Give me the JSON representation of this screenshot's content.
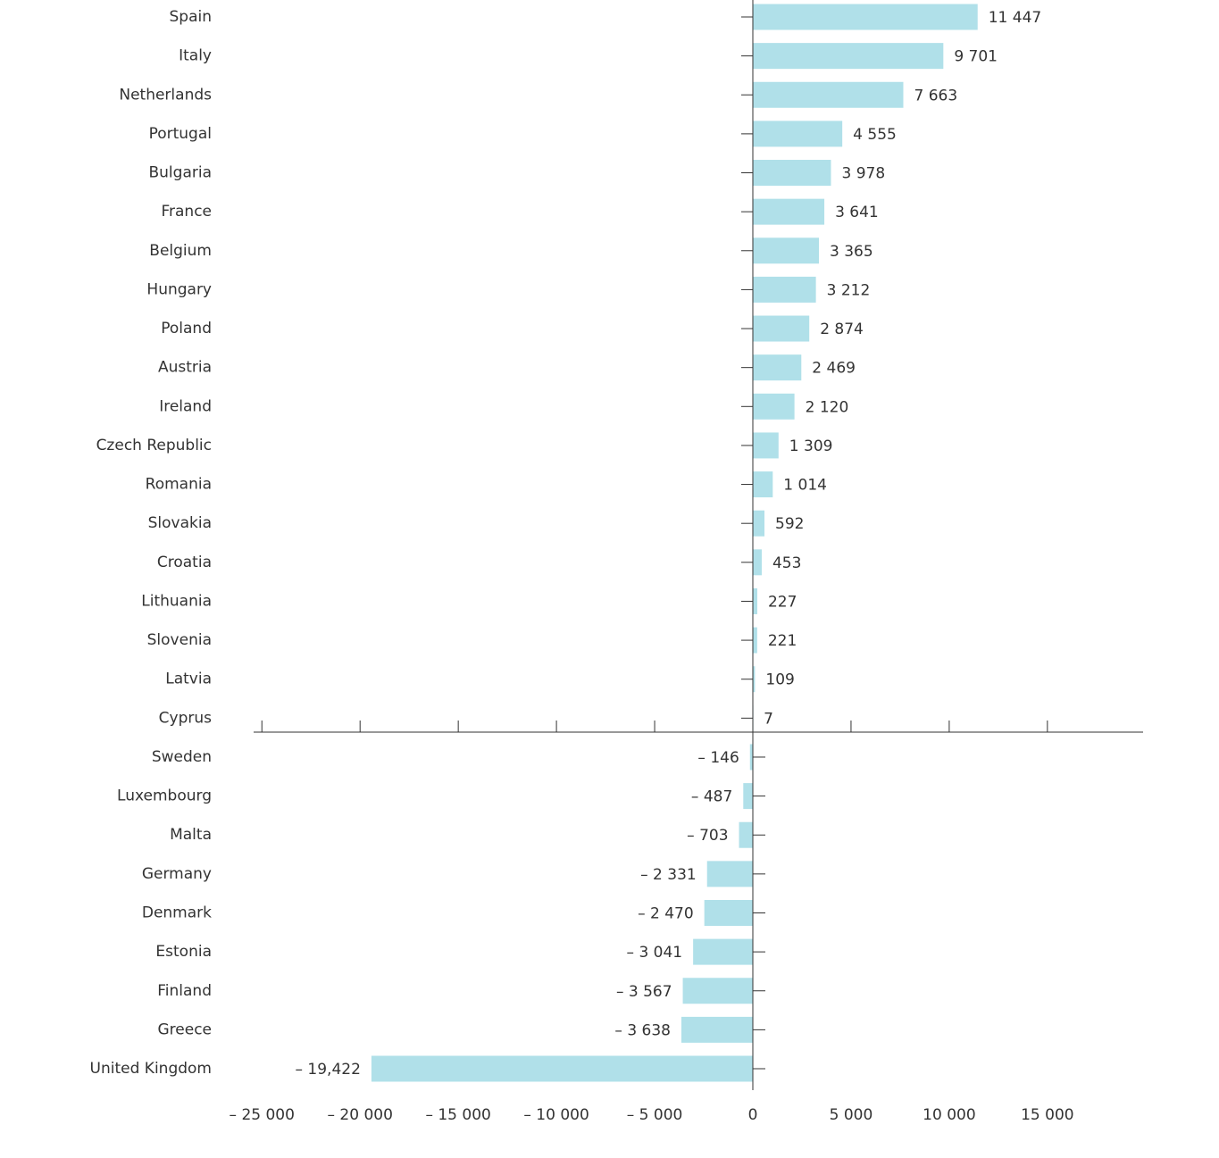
{
  "chart_data": {
    "type": "bar",
    "orientation": "horizontal",
    "categories": [
      "Spain",
      "Italy",
      "Netherlands",
      "Portugal",
      "Bulgaria",
      "France",
      "Belgium",
      "Hungary",
      "Poland",
      "Austria",
      "Ireland",
      "Czech Republic",
      "Romania",
      "Slovakia",
      "Croatia",
      "Lithuania",
      "Slovenia",
      "Latvia",
      "Cyprus",
      "Sweden",
      "Luxembourg",
      "Malta",
      "Germany",
      "Denmark",
      "Estonia",
      "Finland",
      "Greece",
      "United Kingdom"
    ],
    "values": [
      11447,
      9701,
      7663,
      4555,
      3978,
      3641,
      3365,
      3212,
      2874,
      2469,
      2120,
      1309,
      1014,
      592,
      453,
      227,
      221,
      109,
      7,
      -146,
      -487,
      -703,
      -2331,
      -2470,
      -3041,
      -3567,
      -3638,
      -19422
    ],
    "value_labels": [
      "11 447",
      "9 701",
      "7 663",
      "4 555",
      "3 978",
      "3 641",
      "3 365",
      "3 212",
      "2 874",
      "2 469",
      "2 120",
      "1 309",
      "1 014",
      "592",
      "453",
      "227",
      "221",
      "109",
      "7",
      "– 146",
      "– 487",
      "– 703",
      "– 2 331",
      "– 2 470",
      "– 3 041",
      "– 3 567",
      "– 3 638",
      "– 19,422"
    ],
    "x_ticks": [
      -25000,
      -20000,
      -15000,
      -10000,
      -5000,
      0,
      5000,
      10000,
      15000
    ],
    "x_tick_labels": [
      "– 25 000",
      "– 20 000",
      "– 15 000",
      "– 10 000",
      "– 5 000",
      "0",
      "5 000",
      "10 000",
      "15 000"
    ],
    "xlim": [
      -25000,
      20000
    ],
    "title": "",
    "xlabel": "",
    "ylabel": "",
    "grid": false,
    "legend": "none",
    "colors": {
      "bar": "#b0e0e9",
      "axis": "#333333",
      "text": "#333333"
    }
  }
}
